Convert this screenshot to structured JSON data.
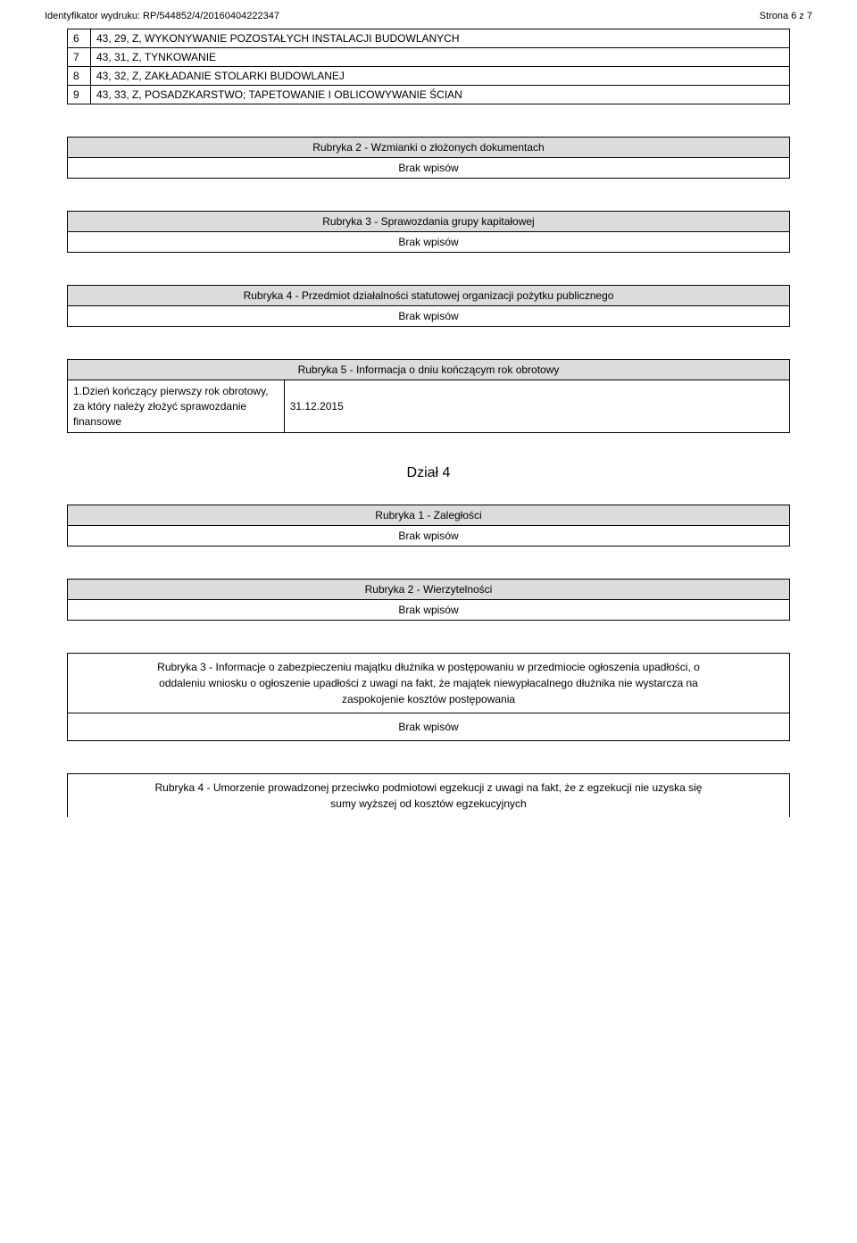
{
  "header": {
    "left": "Identyfikator wydruku: RP/544852/4/20160404222347",
    "right": "Strona 6 z 7"
  },
  "top_table": {
    "rows": [
      {
        "n": "6",
        "text": "43, 29, Z, WYKONYWANIE POZOSTAŁYCH INSTALACJI BUDOWLANYCH"
      },
      {
        "n": "7",
        "text": "43, 31, Z, TYNKOWANIE"
      },
      {
        "n": "8",
        "text": "43, 32, Z, ZAKŁADANIE STOLARKI BUDOWLANEJ"
      },
      {
        "n": "9",
        "text": "43, 33, Z, POSADZKARSTWO; TAPETOWANIE I OBLICOWYWANIE ŚCIAN"
      }
    ]
  },
  "rubryka2": {
    "head": "Rubryka 2 - Wzmianki o złożonych dokumentach",
    "body": "Brak wpisów"
  },
  "rubryka3": {
    "head": "Rubryka 3 - Sprawozdania grupy kapitałowej",
    "body": "Brak wpisów"
  },
  "rubryka4": {
    "head": "Rubryka 4 - Przedmiot działalności statutowej organizacji pożytku publicznego",
    "body": "Brak wpisów"
  },
  "rubryka5": {
    "head": "Rubryka 5 - Informacja o dniu kończącym rok obrotowy",
    "left": "1.Dzień kończący pierwszy rok obrotowy, za który należy złożyć sprawozdanie finansowe",
    "right": "31.12.2015"
  },
  "dzial4": {
    "title": "Dział 4",
    "r1": {
      "head": "Rubryka 1 - Zaległości",
      "body": "Brak wpisów"
    },
    "r2": {
      "head": "Rubryka 2 - Wierzytelności",
      "body": "Brak wpisów"
    },
    "r3": {
      "line1": "Rubryka 3 - Informacje o zabezpieczeniu majątku dłużnika w postępowaniu w przedmiocie ogłoszenia upadłości, o",
      "line2": "oddaleniu wniosku o ogłoszenie upadłości z uwagi na fakt, że majątek niewypłacalnego dłużnika nie wystarcza na",
      "line3": "zaspokojenie kosztów postępowania",
      "body": "Brak wpisów"
    },
    "r4": {
      "line1": "Rubryka 4 - Umorzenie prowadzonej przeciwko podmiotowi egzekucji z uwagi na fakt, że z egzekucji nie uzyska się",
      "line2": "sumy wyższej od kosztów egzekucyjnych"
    }
  }
}
